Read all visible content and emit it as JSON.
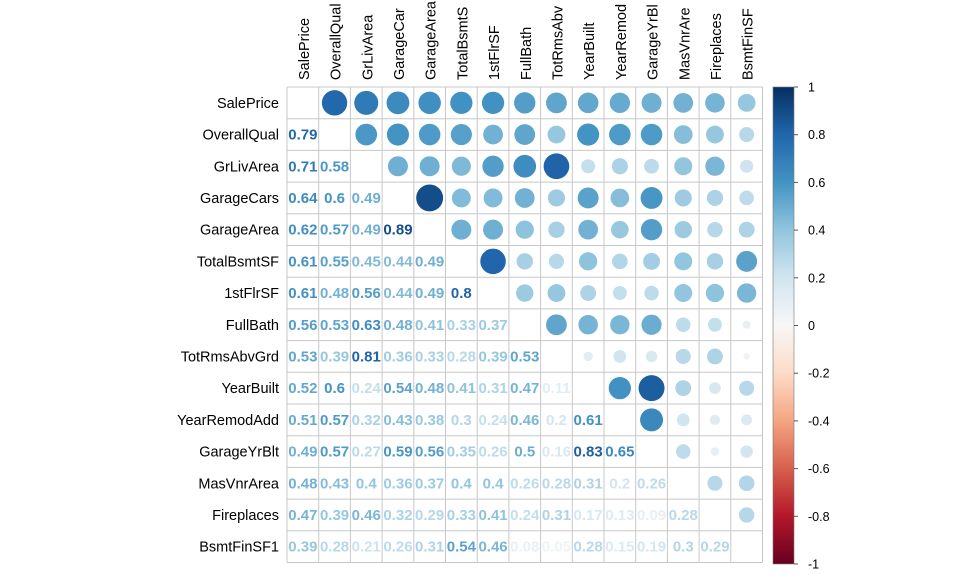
{
  "chart_data": {
    "type": "heatmap",
    "variables": [
      "SalePrice",
      "OverallQual",
      "GrLivArea",
      "GarageCars",
      "GarageArea",
      "TotalBsmtSF",
      "1stFlrSF",
      "FullBath",
      "TotRmsAbvGrd",
      "YearBuilt",
      "YearRemodAdd",
      "GarageYrBlt",
      "MasVnrArea",
      "Fireplaces",
      "BsmtFinSF1"
    ],
    "column_labels": [
      "SalePrice",
      "OverallQual",
      "GrLivArea",
      "GarageCar",
      "GarageArea",
      "TotalBsmtS",
      "1stFlrSF",
      "FullBath",
      "TotRmsAbv",
      "YearBuilt",
      "YearRemod",
      "GarageYrBl",
      "MasVnrAre",
      "Fireplaces",
      "BsmtFinSF"
    ],
    "row_labels": [
      "SalePrice",
      "OverallQual",
      "GrLivArea",
      "GarageCars",
      "GarageArea",
      "TotalBsmtSF",
      "1stFlrSF",
      "FullBath",
      "TotRmsAbvGrd",
      "YearBuilt",
      "YearRemodAdd",
      "GarageYrBlt",
      "MasVnrArea",
      "Fireplaces",
      "BsmtFinSF1"
    ],
    "lower_labels": [
      [],
      [
        "0.79"
      ],
      [
        "0.71",
        "0.58"
      ],
      [
        "0.64",
        "0.6",
        "0.49"
      ],
      [
        "0.62",
        "0.57",
        "0.49",
        "0.89"
      ],
      [
        "0.61",
        "0.55",
        "0.45",
        "0.44",
        "0.49"
      ],
      [
        "0.61",
        "0.48",
        "0.56",
        "0.44",
        "0.49",
        "0.8"
      ],
      [
        "0.56",
        "0.53",
        "0.63",
        "0.48",
        "0.41",
        "0.33",
        "0.37"
      ],
      [
        "0.53",
        "0.39",
        "0.81",
        "0.36",
        "0.33",
        "0.28",
        "0.39",
        "0.53"
      ],
      [
        "0.52",
        "0.6",
        "0.24",
        "0.54",
        "0.48",
        "0.41",
        "0.31",
        "0.47",
        "0.11"
      ],
      [
        "0.51",
        "0.57",
        "0.32",
        "0.43",
        "0.38",
        "0.3",
        "0.24",
        "0.46",
        "0.2",
        "0.61"
      ],
      [
        "0.49",
        "0.57",
        "0.27",
        "0.59",
        "0.56",
        "0.35",
        "0.26",
        "0.5",
        "0.16",
        "0.83",
        "0.65"
      ],
      [
        "0.48",
        "0.43",
        "0.4",
        "0.36",
        "0.37",
        "0.4",
        "0.4",
        "0.26",
        "0.28",
        "0.31",
        "0.2",
        "0.26"
      ],
      [
        "0.47",
        "0.39",
        "0.46",
        "0.32",
        "0.29",
        "0.33",
        "0.41",
        "0.24",
        "0.31",
        "0.17",
        "0.13",
        "0.09",
        "0.28"
      ],
      [
        "0.39",
        "0.28",
        "0.21",
        "0.26",
        "0.31",
        "0.54",
        "0.46",
        "0.08",
        "0.05",
        "0.28",
        "0.15",
        "0.19",
        "0.3",
        "0.29"
      ]
    ],
    "colorbar": {
      "range": [
        -1,
        1
      ],
      "tick_labels": [
        "1",
        "0.8",
        "0.6",
        "0.4",
        "0.2",
        "0",
        "-0.2",
        "-0.4",
        "-0.6",
        "-0.8",
        "-1"
      ]
    },
    "colors": {
      "strong_positive": "#0a3a70",
      "mid_positive": "#4393c3",
      "zero": "#f7f7f7",
      "mid_negative": "#d6604d",
      "strong_negative": "#67001f",
      "grid": "#c8c8c8"
    },
    "layout": "upper triangle circles, lower triangle numbers",
    "grid": true
  }
}
